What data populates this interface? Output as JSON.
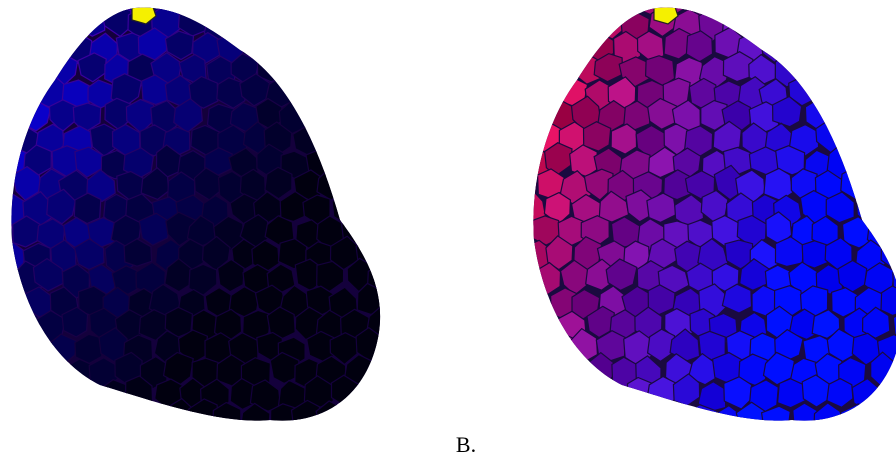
{
  "caption": "B."
}
